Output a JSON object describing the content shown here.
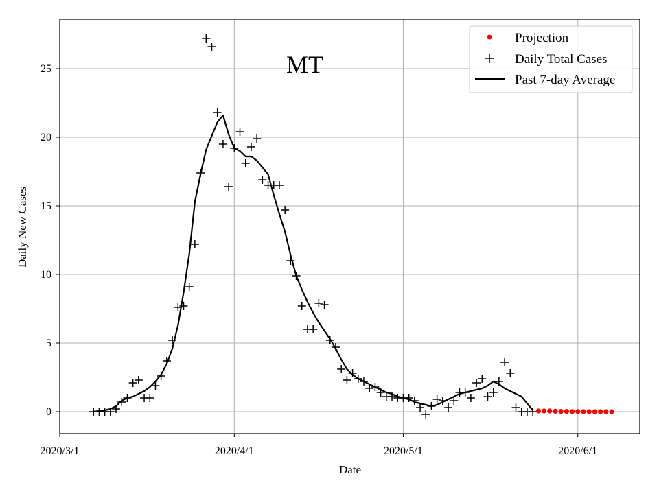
{
  "chart_data": {
    "type": "line",
    "title": "MT",
    "xlabel": "Date",
    "ylabel": "Daily New Cases",
    "x_start_date": "2020-03-01",
    "xlim": [
      0,
      103
    ],
    "ylim": [
      -1.6,
      28.6
    ],
    "grid": true,
    "x_ticks": [
      {
        "day": 0,
        "label": "2020/3/1"
      },
      {
        "day": 31,
        "label": "2020/4/1"
      },
      {
        "day": 61,
        "label": "2020/5/1"
      },
      {
        "day": 92,
        "label": "2020/6/1"
      }
    ],
    "y_ticks": [
      0,
      5,
      10,
      15,
      20,
      25
    ],
    "legend": {
      "position": "top-right",
      "entries": [
        {
          "label": "Projection",
          "style": "red-dot"
        },
        {
          "label": "Daily Total Cases",
          "style": "plus"
        },
        {
          "label": "Past 7-day Average",
          "style": "line"
        }
      ]
    },
    "colors": {
      "projection": "#ff0000",
      "daily": "#000000",
      "average": "#000000",
      "grid": "#b0b0b0"
    },
    "series": [
      {
        "name": "Daily Total Cases",
        "marker": "plus",
        "points": [
          [
            6,
            0
          ],
          [
            7,
            0
          ],
          [
            8,
            0
          ],
          [
            9,
            0
          ],
          [
            10,
            0.2
          ],
          [
            11,
            0.7
          ],
          [
            12,
            1
          ],
          [
            13,
            2.1
          ],
          [
            14,
            2.3
          ],
          [
            15,
            1
          ],
          [
            16,
            1
          ],
          [
            17,
            1.9
          ],
          [
            18,
            2.6
          ],
          [
            19,
            3.7
          ],
          [
            20,
            5.2
          ],
          [
            21,
            7.6
          ],
          [
            22,
            7.7
          ],
          [
            23,
            9.1
          ],
          [
            24,
            12.2
          ],
          [
            25,
            17.4
          ],
          [
            26,
            27.2
          ],
          [
            27,
            26.6
          ],
          [
            28,
            21.8
          ],
          [
            29,
            19.5
          ],
          [
            30,
            16.4
          ],
          [
            31,
            19.2
          ],
          [
            32,
            20.4
          ],
          [
            33,
            18.1
          ],
          [
            34,
            19.3
          ],
          [
            35,
            19.9
          ],
          [
            36,
            16.9
          ],
          [
            37,
            16.5
          ],
          [
            38,
            16.5
          ],
          [
            39,
            16.5
          ],
          [
            40,
            14.7
          ],
          [
            41,
            11
          ],
          [
            42,
            9.9
          ],
          [
            43,
            7.7
          ],
          [
            44,
            6
          ],
          [
            45,
            6
          ],
          [
            46,
            7.9
          ],
          [
            47,
            7.8
          ],
          [
            48,
            5.2
          ],
          [
            49,
            4.7
          ],
          [
            50,
            3.1
          ],
          [
            51,
            2.3
          ],
          [
            52,
            2.8
          ],
          [
            53,
            2.4
          ],
          [
            54,
            2.2
          ],
          [
            55,
            1.7
          ],
          [
            56,
            1.8
          ],
          [
            57,
            1.4
          ],
          [
            58,
            1.1
          ],
          [
            59,
            1.1
          ],
          [
            60,
            1
          ],
          [
            61,
            1
          ],
          [
            62,
            1
          ],
          [
            63,
            0.8
          ],
          [
            64,
            0.3
          ],
          [
            65,
            -0.2
          ],
          [
            66,
            0.4
          ],
          [
            67,
            0.9
          ],
          [
            68,
            0.8
          ],
          [
            69,
            0.3
          ],
          [
            70,
            0.8
          ],
          [
            71,
            1.4
          ],
          [
            72,
            1.4
          ],
          [
            73,
            1
          ],
          [
            74,
            2.1
          ],
          [
            75,
            2.4
          ],
          [
            76,
            1.1
          ],
          [
            77,
            1.4
          ],
          [
            78,
            2.2
          ],
          [
            79,
            3.6
          ],
          [
            80,
            2.8
          ],
          [
            81,
            0.3
          ],
          [
            82,
            0
          ],
          [
            83,
            0
          ],
          [
            84,
            0
          ]
        ]
      },
      {
        "name": "Past 7-day Average",
        "marker": "line",
        "points": [
          [
            6,
            0
          ],
          [
            8,
            0.1
          ],
          [
            9,
            0.2
          ],
          [
            10,
            0.4
          ],
          [
            11,
            0.8
          ],
          [
            12,
            1
          ],
          [
            13,
            1.1
          ],
          [
            14,
            1.3
          ],
          [
            15,
            1.5
          ],
          [
            16,
            1.8
          ],
          [
            17,
            2.2
          ],
          [
            18,
            2.7
          ],
          [
            19,
            3.5
          ],
          [
            20,
            4.6
          ],
          [
            21,
            6.3
          ],
          [
            22,
            8.7
          ],
          [
            23,
            11.5
          ],
          [
            24,
            15.3
          ],
          [
            25,
            17.3
          ],
          [
            26,
            19.1
          ],
          [
            27,
            20.1
          ],
          [
            28,
            21.1
          ],
          [
            29,
            21.6
          ],
          [
            30,
            20.2
          ],
          [
            31,
            19.2
          ],
          [
            32,
            19
          ],
          [
            33,
            18.6
          ],
          [
            34,
            18.6
          ],
          [
            35,
            18.3
          ],
          [
            36,
            17.8
          ],
          [
            37,
            17.3
          ],
          [
            38,
            15.8
          ],
          [
            39,
            14.4
          ],
          [
            40,
            13.1
          ],
          [
            41,
            11.4
          ],
          [
            42,
            9.9
          ],
          [
            43,
            8.9
          ],
          [
            44,
            8
          ],
          [
            45,
            7.2
          ],
          [
            46,
            6.5
          ],
          [
            47,
            5.9
          ],
          [
            48,
            5.3
          ],
          [
            49,
            4.6
          ],
          [
            50,
            3.8
          ],
          [
            51,
            3.1
          ],
          [
            52,
            2.7
          ],
          [
            53,
            2.4
          ],
          [
            54,
            2.2
          ],
          [
            55,
            2
          ],
          [
            56,
            1.8
          ],
          [
            57,
            1.6
          ],
          [
            58,
            1.4
          ],
          [
            59,
            1.3
          ],
          [
            60,
            1.1
          ],
          [
            61,
            1
          ],
          [
            62,
            0.9
          ],
          [
            63,
            0.7
          ],
          [
            64,
            0.6
          ],
          [
            65,
            0.5
          ],
          [
            66,
            0.4
          ],
          [
            67,
            0.5
          ],
          [
            68,
            0.7
          ],
          [
            69,
            0.9
          ],
          [
            70,
            1.1
          ],
          [
            71,
            1.3
          ],
          [
            72,
            1.4
          ],
          [
            73,
            1.5
          ],
          [
            74,
            1.6
          ],
          [
            75,
            1.7
          ],
          [
            76,
            1.9
          ],
          [
            77,
            2.2
          ],
          [
            78,
            2
          ],
          [
            79,
            1.7
          ],
          [
            80,
            1.5
          ],
          [
            81,
            1.3
          ],
          [
            82,
            1.1
          ],
          [
            83,
            0.6
          ],
          [
            84,
            0.1
          ]
        ]
      },
      {
        "name": "Projection",
        "marker": "red-dot",
        "points": [
          [
            85,
            0.05
          ],
          [
            86,
            0.05
          ],
          [
            87,
            0.05
          ],
          [
            88,
            0.03
          ],
          [
            89,
            0.02
          ],
          [
            90,
            0.02
          ],
          [
            91,
            0.01
          ],
          [
            92,
            0.01
          ],
          [
            93,
            0.01
          ],
          [
            94,
            0
          ],
          [
            95,
            0
          ],
          [
            96,
            0
          ],
          [
            97,
            0
          ],
          [
            98,
            0
          ]
        ]
      }
    ]
  }
}
